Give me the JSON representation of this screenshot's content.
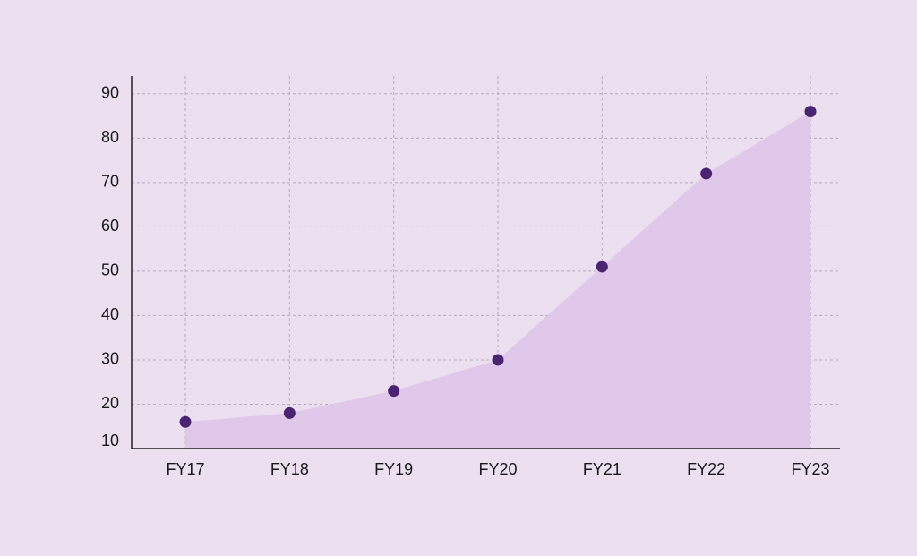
{
  "chart_data": {
    "type": "area",
    "categories": [
      "FY17",
      "FY18",
      "FY19",
      "FY20",
      "FY21",
      "FY22",
      "FY23"
    ],
    "values": [
      16,
      18,
      23,
      30,
      51,
      72,
      86
    ],
    "color": "#4a2470",
    "fill_color": "#dfc8e9",
    "ylim": [
      10,
      94
    ],
    "yticks": [
      10,
      20,
      30,
      40,
      50,
      60,
      70,
      80,
      90
    ],
    "grid": true
  }
}
